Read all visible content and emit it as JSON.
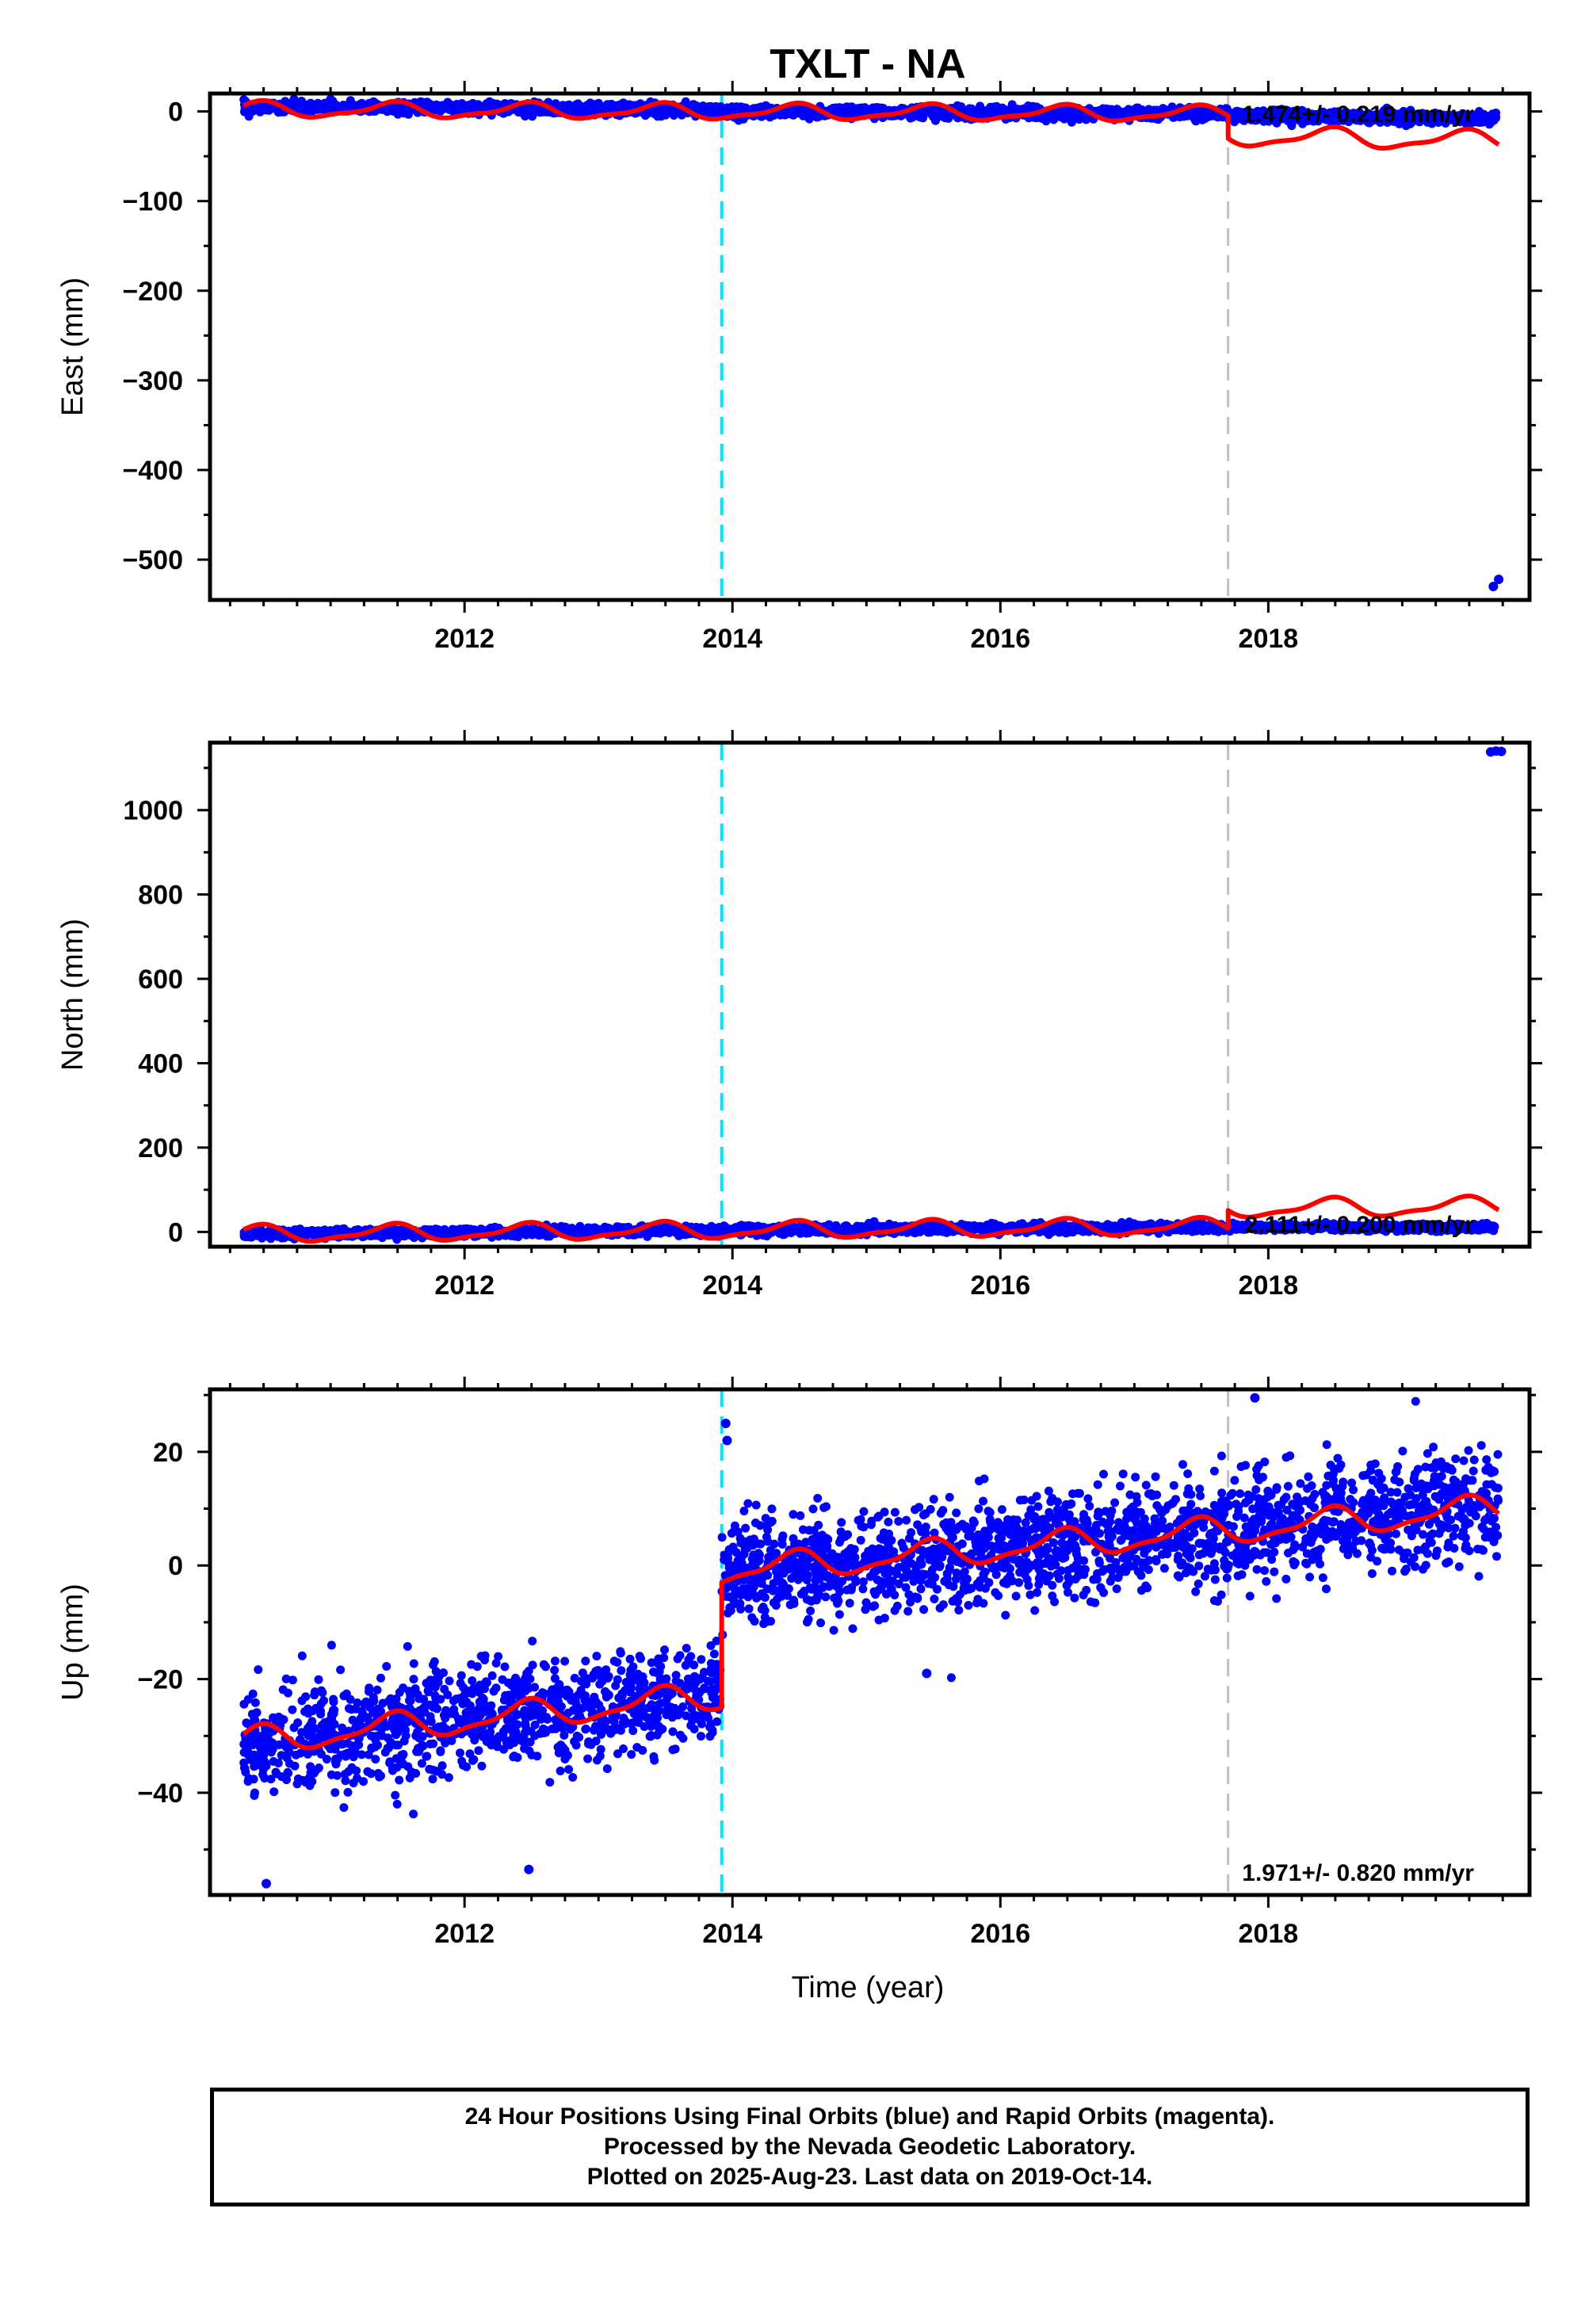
{
  "title": "TXLT - NA",
  "xlabel": "Time (year)",
  "colors": {
    "final_orbits": "#0000ff",
    "model": "#ff0000",
    "event_antenna": "#00e5ff",
    "event_other": "#c0c0c0",
    "frame": "#000000"
  },
  "footer": {
    "line1": "24 Hour Positions Using Final Orbits (blue) and Rapid Orbits (magenta).",
    "line2": "Processed by the Nevada Geodetic Laboratory.",
    "line3": "Plotted on 2025-Aug-23. Last data on 2019-Oct-14."
  },
  "chart_data": [
    {
      "type": "scatter",
      "component": "east",
      "ylabel": "East (mm)",
      "xlim": [
        2010.1,
        2019.95
      ],
      "ylim": [
        -545,
        20
      ],
      "xticks": [
        "2012",
        "2014",
        "2016",
        "2018"
      ],
      "yticks": [
        "0",
        "−100",
        "−200",
        "−300",
        "−400",
        "−500"
      ],
      "ytick_values": [
        0,
        -100,
        -200,
        -300,
        -400,
        -500
      ],
      "vlines": [
        {
          "x": 2013.92,
          "style": "antenna"
        },
        {
          "x": 2017.7,
          "style": "other"
        }
      ],
      "rate_text": "1.474+/- 0.219 mm/yr",
      "rate_position": "top-right",
      "series": [
        {
          "kind": "points",
          "color": "#0000ff",
          "segments": [
            {
              "x_start": 2010.35,
              "x_end": 2013.92,
              "y_start": 5,
              "y_end": 2,
              "scatter": 3
            },
            {
              "x_start": 2013.92,
              "x_end": 2017.7,
              "y_start": 0,
              "y_end": -3,
              "scatter": 3
            },
            {
              "x_start": 2017.7,
              "x_end": 2019.7,
              "y_start": -5,
              "y_end": -8,
              "scatter": 3
            }
          ],
          "outliers": [
            {
              "x": 2019.68,
              "y": -530
            },
            {
              "x": 2019.72,
              "y": -522
            }
          ]
        },
        {
          "kind": "model",
          "color": "#ff0000",
          "segments": [
            {
              "x_start": 2010.35,
              "x_end": 2017.7,
              "y_start": 2,
              "y_end": -3,
              "amp": 8
            },
            {
              "x_start": 2017.7,
              "x_end": 2019.72,
              "y_start": -28,
              "y_end": -33,
              "amp": 10
            }
          ]
        }
      ]
    },
    {
      "type": "scatter",
      "component": "north",
      "ylabel": "North (mm)",
      "xlim": [
        2010.1,
        2019.95
      ],
      "ylim": [
        -35,
        1160
      ],
      "xticks": [
        "2012",
        "2014",
        "2016",
        "2018"
      ],
      "yticks": [
        "0",
        "200",
        "400",
        "600",
        "800",
        "1000"
      ],
      "ytick_values": [
        0,
        200,
        400,
        600,
        800,
        1000
      ],
      "vlines": [
        {
          "x": 2013.92,
          "style": "antenna"
        },
        {
          "x": 2017.7,
          "style": "other"
        }
      ],
      "rate_text": "2.111+/- 0.200 mm/yr",
      "rate_position": "bottom-right",
      "series": [
        {
          "kind": "points",
          "color": "#0000ff",
          "segments": [
            {
              "x_start": 2010.35,
              "x_end": 2017.7,
              "y_start": -5,
              "y_end": 12,
              "scatter": 5
            },
            {
              "x_start": 2017.7,
              "x_end": 2019.7,
              "y_start": 12,
              "y_end": 10,
              "scatter": 4
            }
          ],
          "outliers": [
            {
              "x": 2019.66,
              "y": 1138
            },
            {
              "x": 2019.7,
              "y": 1140
            },
            {
              "x": 2019.74,
              "y": 1139
            }
          ]
        },
        {
          "kind": "model",
          "color": "#ff0000",
          "segments": [
            {
              "x_start": 2010.35,
              "x_end": 2017.7,
              "y_start": -5,
              "y_end": 12,
              "amp": 18
            },
            {
              "x_start": 2017.7,
              "x_end": 2019.72,
              "y_start": 55,
              "y_end": 60,
              "amp": 20
            }
          ]
        }
      ]
    },
    {
      "type": "scatter",
      "component": "up",
      "ylabel": "Up (mm)",
      "xlim": [
        2010.1,
        2019.95
      ],
      "ylim": [
        -58,
        31
      ],
      "xticks": [
        "2012",
        "2014",
        "2016",
        "2018"
      ],
      "yticks": [
        "20",
        "0",
        "−20",
        "−40"
      ],
      "ytick_values": [
        20,
        0,
        -20,
        -40
      ],
      "vlines": [
        {
          "x": 2013.92,
          "style": "antenna"
        },
        {
          "x": 2017.7,
          "style": "other"
        }
      ],
      "rate_text": "1.971+/- 0.820 mm/yr",
      "rate_position": "bottom-right",
      "series": [
        {
          "kind": "points",
          "color": "#0000ff",
          "segments": [
            {
              "x_start": 2010.35,
              "x_end": 2013.92,
              "y_start": -32,
              "y_end": -22,
              "scatter": 4.5
            },
            {
              "x_start": 2013.92,
              "x_end": 2019.72,
              "y_start": -2,
              "y_end": 11,
              "scatter": 4.5
            }
          ],
          "outliers": [
            {
              "x": 2010.52,
              "y": -56
            },
            {
              "x": 2012.48,
              "y": -53.5
            },
            {
              "x": 2013.95,
              "y": 25
            },
            {
              "x": 2013.96,
              "y": 22
            },
            {
              "x": 2017.9,
              "y": 29.5
            },
            {
              "x": 2015.45,
              "y": -19
            }
          ]
        },
        {
          "kind": "model",
          "color": "#ff0000",
          "segments": [
            {
              "x_start": 2010.35,
              "x_end": 2013.92,
              "y_start": -31,
              "y_end": -23,
              "amp": 2.2
            },
            {
              "x_start": 2013.92,
              "x_end": 2019.72,
              "y_start": -1,
              "y_end": 10,
              "amp": 2.2
            }
          ]
        }
      ]
    }
  ]
}
